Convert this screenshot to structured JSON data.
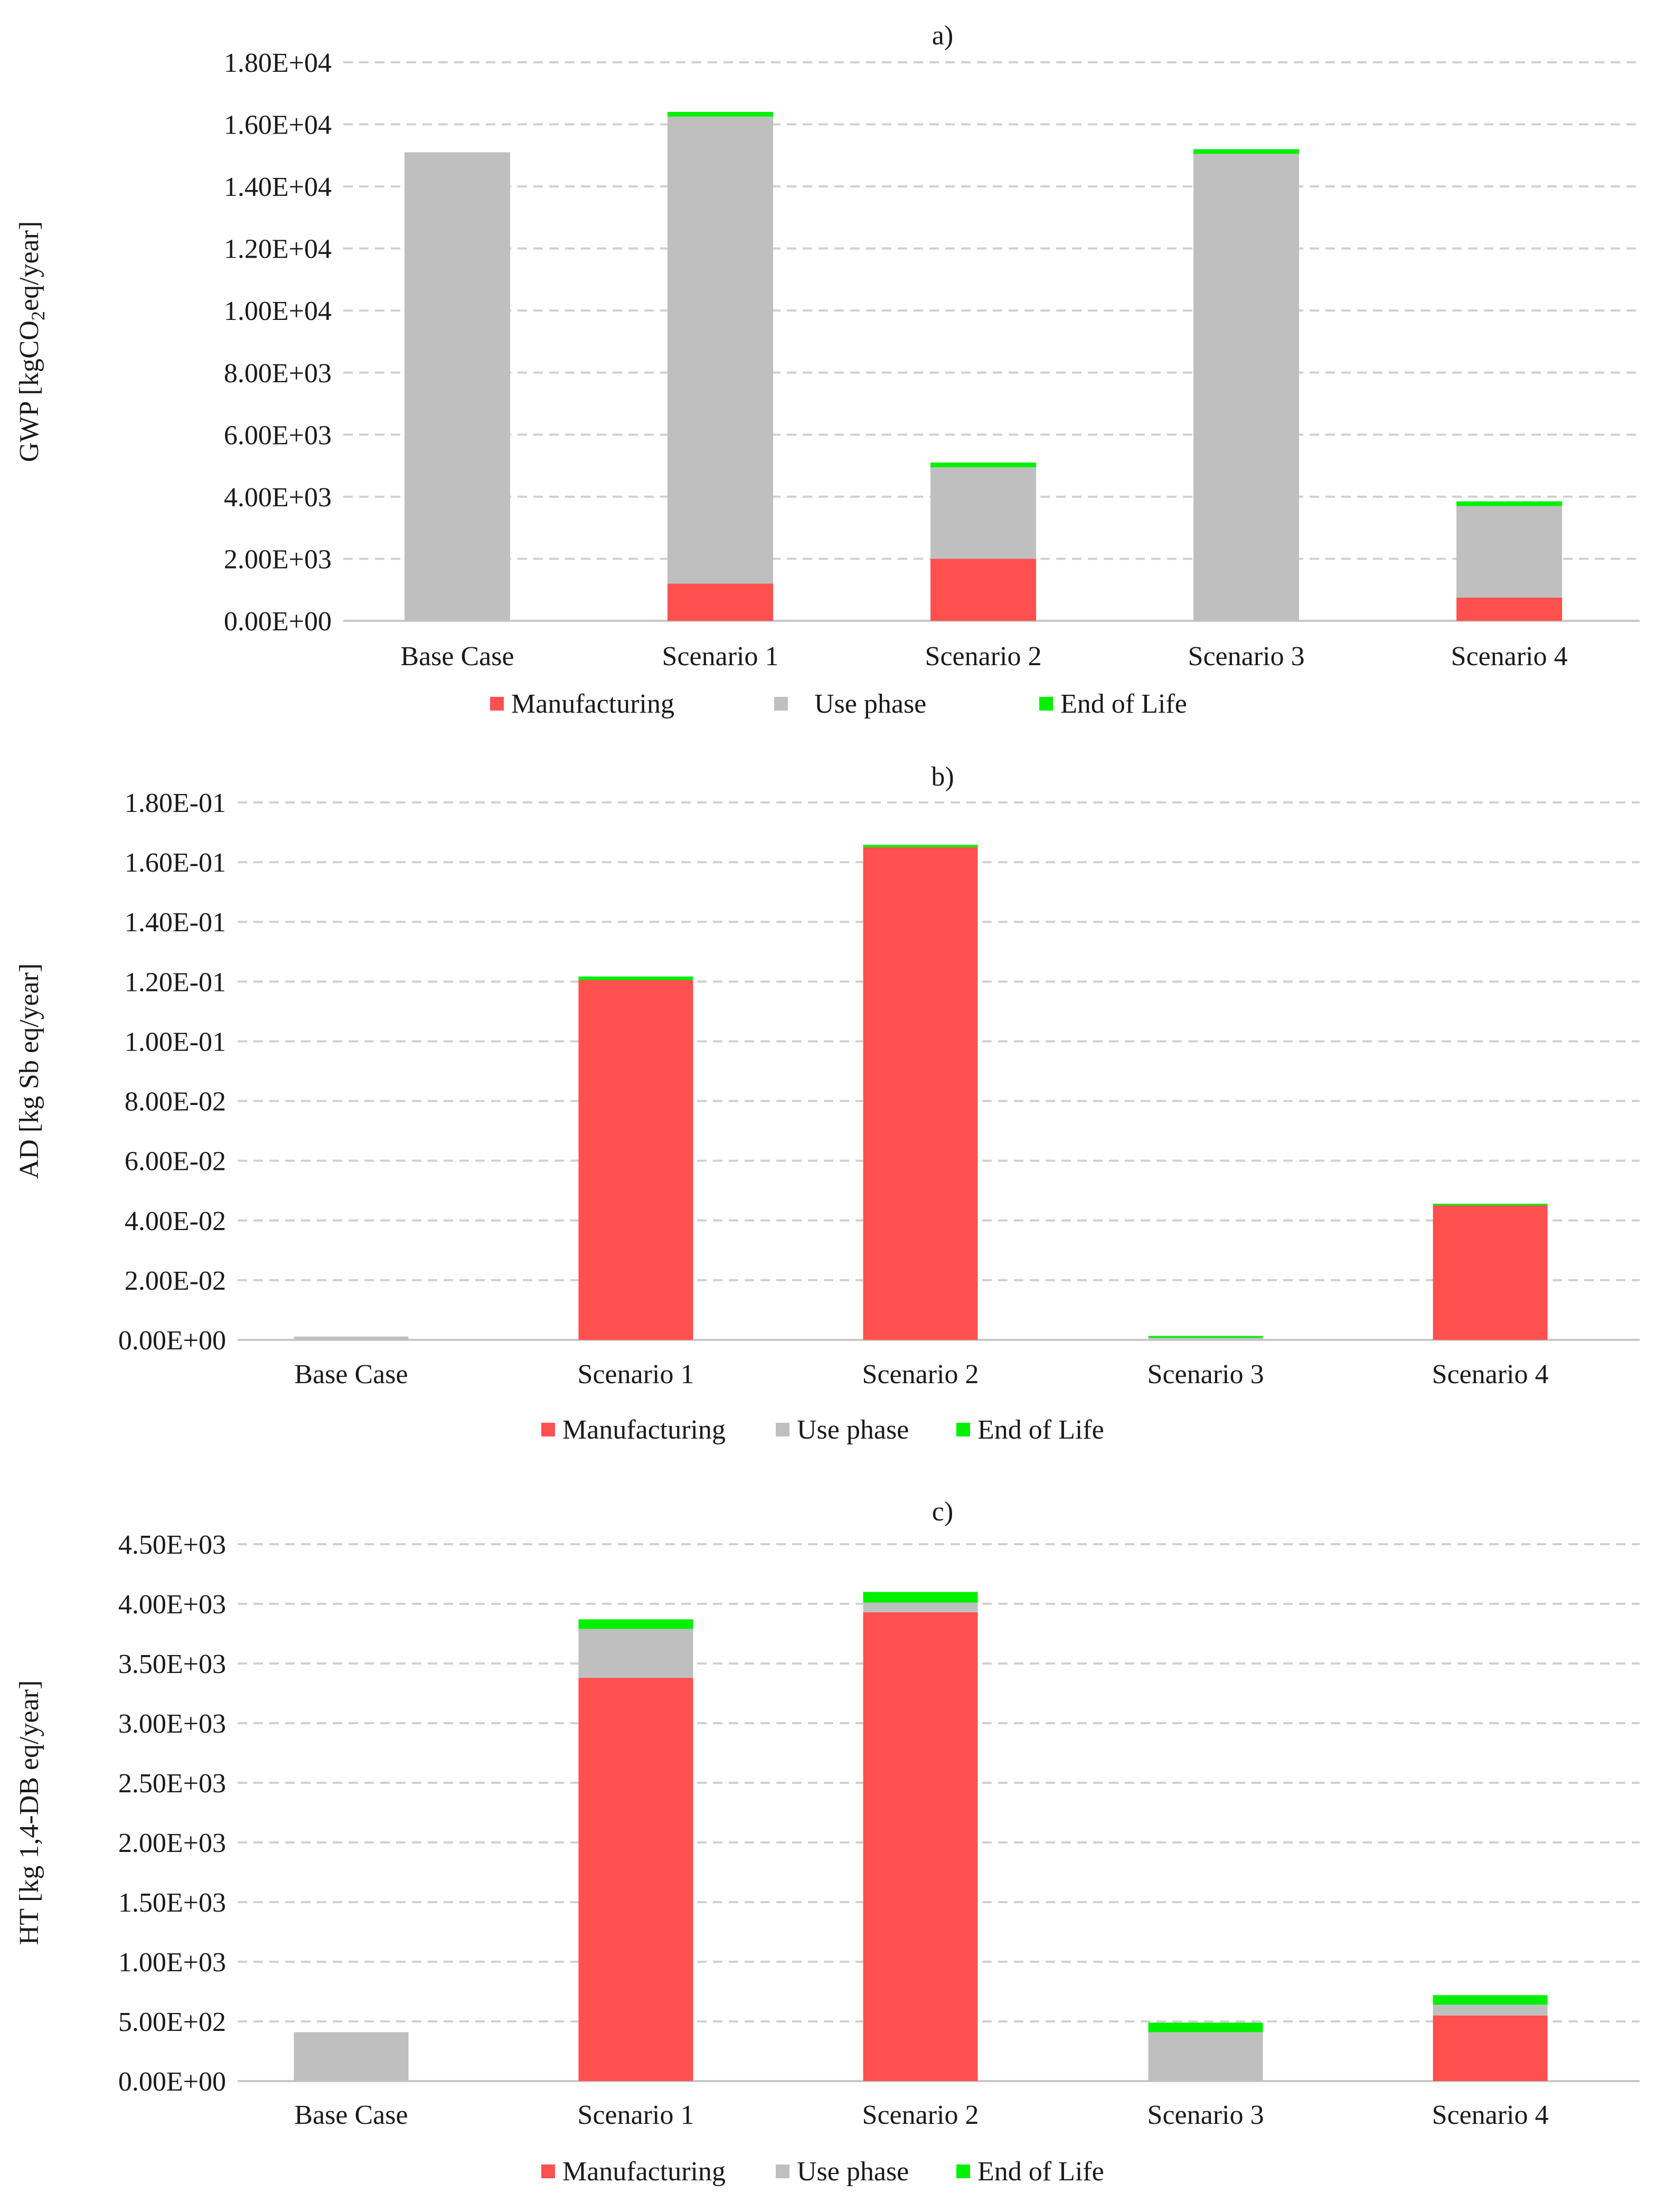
{
  "colors": {
    "manufacturing": "#FF5050",
    "use_phase": "#BFBFBF",
    "end_of_life": "#00F000",
    "grid": "#D0D0D0",
    "axis": "#C8C8C8",
    "text": "#1a1a1a"
  },
  "chart_data": [
    {
      "type": "bar",
      "stacked": true,
      "title": "a)",
      "xlabel": "",
      "ylabel_parts": [
        "GWP [kgCO",
        "2",
        "eq/year]"
      ],
      "ylim": [
        0,
        18000
      ],
      "ytick_values": [
        0,
        2000,
        4000,
        6000,
        8000,
        10000,
        12000,
        14000,
        16000,
        18000
      ],
      "ytick_labels": [
        "0.00E+00",
        "2.00E+03",
        "4.00E+03",
        "6.00E+03",
        "8.00E+03",
        "1.00E+04",
        "1.20E+04",
        "1.40E+04",
        "1.60E+04",
        "1.80E+04"
      ],
      "categories": [
        "Base Case",
        "Scenario 1",
        "Scenario 2",
        "Scenario 3",
        "Scenario 4"
      ],
      "series": [
        {
          "name": "Manufacturing",
          "key": "manufacturing",
          "values": [
            0,
            1200,
            2000,
            0,
            750
          ]
        },
        {
          "name": "Use phase",
          "key": "use_phase",
          "values": [
            15100,
            15050,
            2950,
            15050,
            2950
          ]
        },
        {
          "name": "End of Life",
          "key": "end_of_life",
          "values": [
            0,
            150,
            150,
            150,
            150
          ]
        }
      ],
      "grid": true,
      "legend_position": "bottom"
    },
    {
      "type": "bar",
      "stacked": true,
      "title": "b)",
      "xlabel": "",
      "ylabel_parts": [
        "AD [kg Sb eq/year]"
      ],
      "ylim": [
        0,
        0.18
      ],
      "ytick_values": [
        0,
        0.02,
        0.04,
        0.06,
        0.08,
        0.1,
        0.12,
        0.14,
        0.16,
        0.18
      ],
      "ytick_labels": [
        "0.00E+00",
        "2.00E-02",
        "4.00E-02",
        "6.00E-02",
        "8.00E-02",
        "1.00E-01",
        "1.20E-01",
        "1.40E-01",
        "1.60E-01",
        "1.80E-01"
      ],
      "categories": [
        "Base Case",
        "Scenario 1",
        "Scenario 2",
        "Scenario 3",
        "Scenario 4"
      ],
      "series": [
        {
          "name": "Manufacturing",
          "key": "manufacturing",
          "values": [
            0,
            0.1205,
            0.165,
            0,
            0.045
          ]
        },
        {
          "name": "Use phase",
          "key": "use_phase",
          "values": [
            0.0011,
            0,
            0,
            0.0007,
            0
          ]
        },
        {
          "name": "End of Life",
          "key": "end_of_life",
          "values": [
            0,
            0.0012,
            0.0008,
            0.0006,
            0.0006
          ]
        }
      ],
      "grid": true,
      "legend_position": "bottom"
    },
    {
      "type": "bar",
      "stacked": true,
      "title": "c)",
      "xlabel": "",
      "ylabel_parts": [
        "HT [kg 1,4-DB eq/year]"
      ],
      "ylim": [
        0,
        4500
      ],
      "ytick_values": [
        0,
        500,
        1000,
        1500,
        2000,
        2500,
        3000,
        3500,
        4000,
        4500
      ],
      "ytick_labels": [
        "0.00E+00",
        "5.00E+02",
        "1.00E+03",
        "1.50E+03",
        "2.00E+03",
        "2.50E+03",
        "3.00E+03",
        "3.50E+03",
        "4.00E+03",
        "4.50E+03"
      ],
      "categories": [
        "Base Case",
        "Scenario 1",
        "Scenario 2",
        "Scenario 3",
        "Scenario 4"
      ],
      "series": [
        {
          "name": "Manufacturing",
          "key": "manufacturing",
          "values": [
            0,
            3380,
            3930,
            0,
            550
          ]
        },
        {
          "name": "Use phase",
          "key": "use_phase",
          "values": [
            410,
            410,
            80,
            410,
            90
          ]
        },
        {
          "name": "End of Life",
          "key": "end_of_life",
          "values": [
            0,
            80,
            90,
            80,
            80
          ]
        }
      ],
      "grid": true,
      "legend_position": "bottom"
    }
  ]
}
